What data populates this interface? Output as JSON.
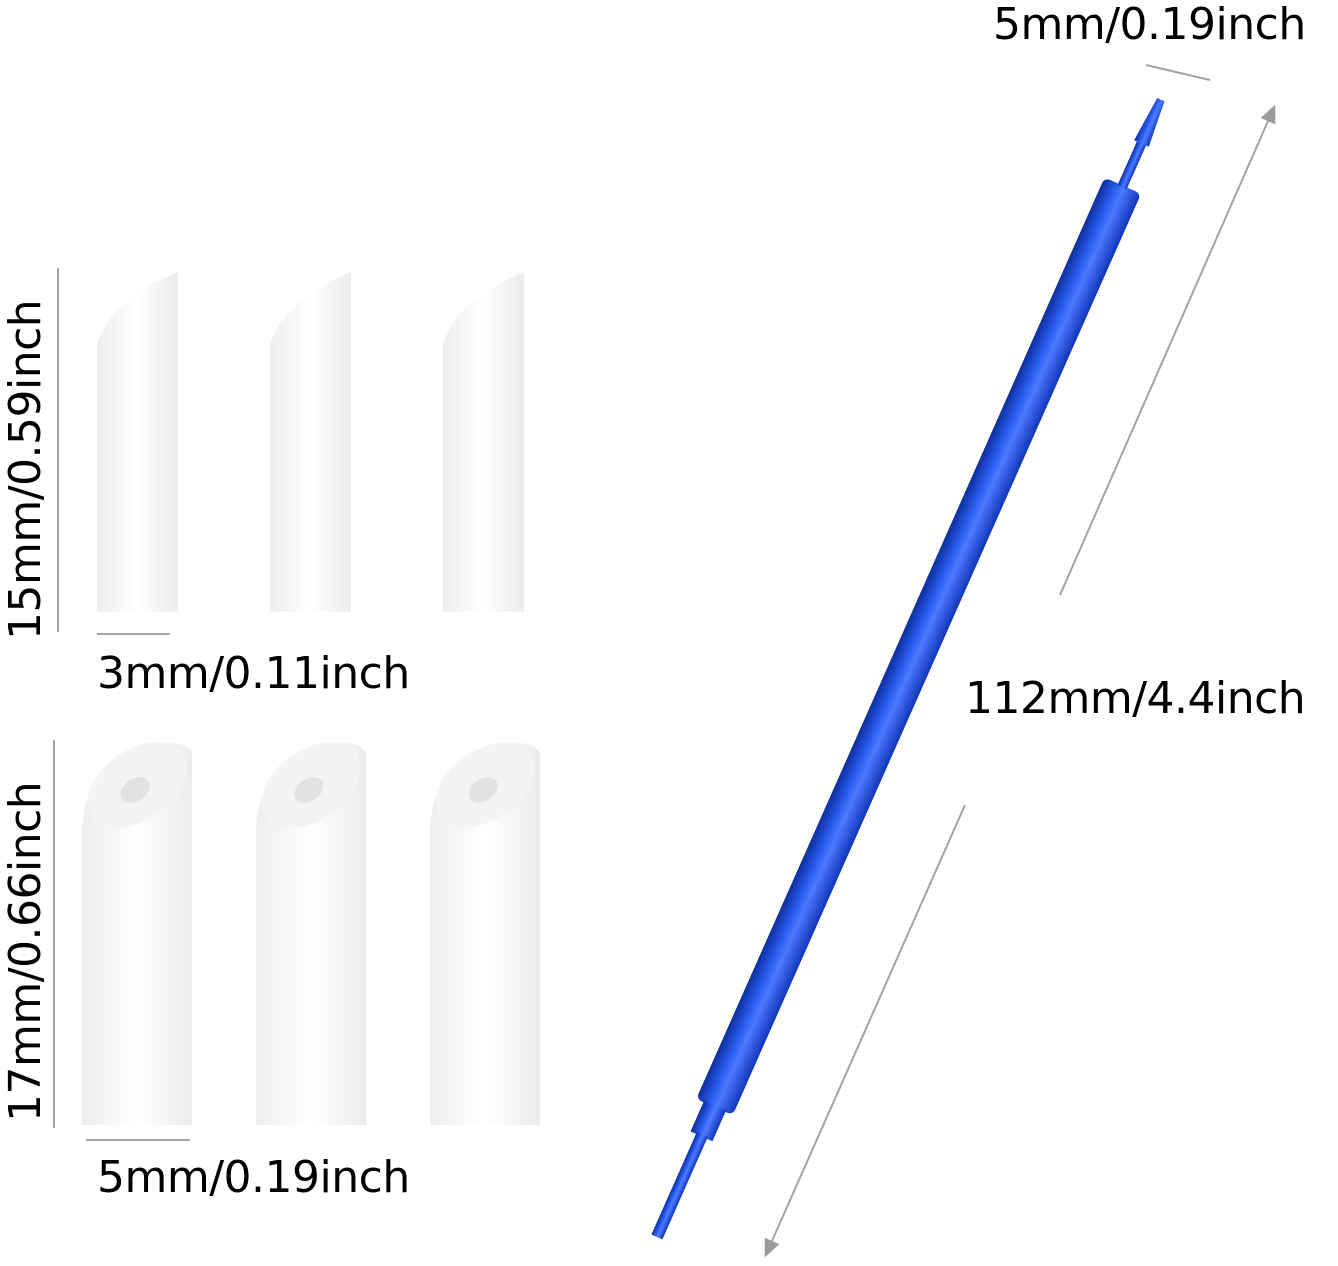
{
  "labels": {
    "pen_tip_width": "5mm/0.19inch",
    "pen_length": "112mm/4.4inch",
    "small_tip_height": "15mm/0.59inch",
    "small_tip_width": "3mm/0.11inch",
    "large_tip_height": "17mm/0.66inch",
    "large_tip_width": "5mm/0.19inch"
  },
  "colors": {
    "pen_blue": "#1f4fd6",
    "dimension_line": "#a0a0a0",
    "tip_white": "#f7f7f7"
  }
}
